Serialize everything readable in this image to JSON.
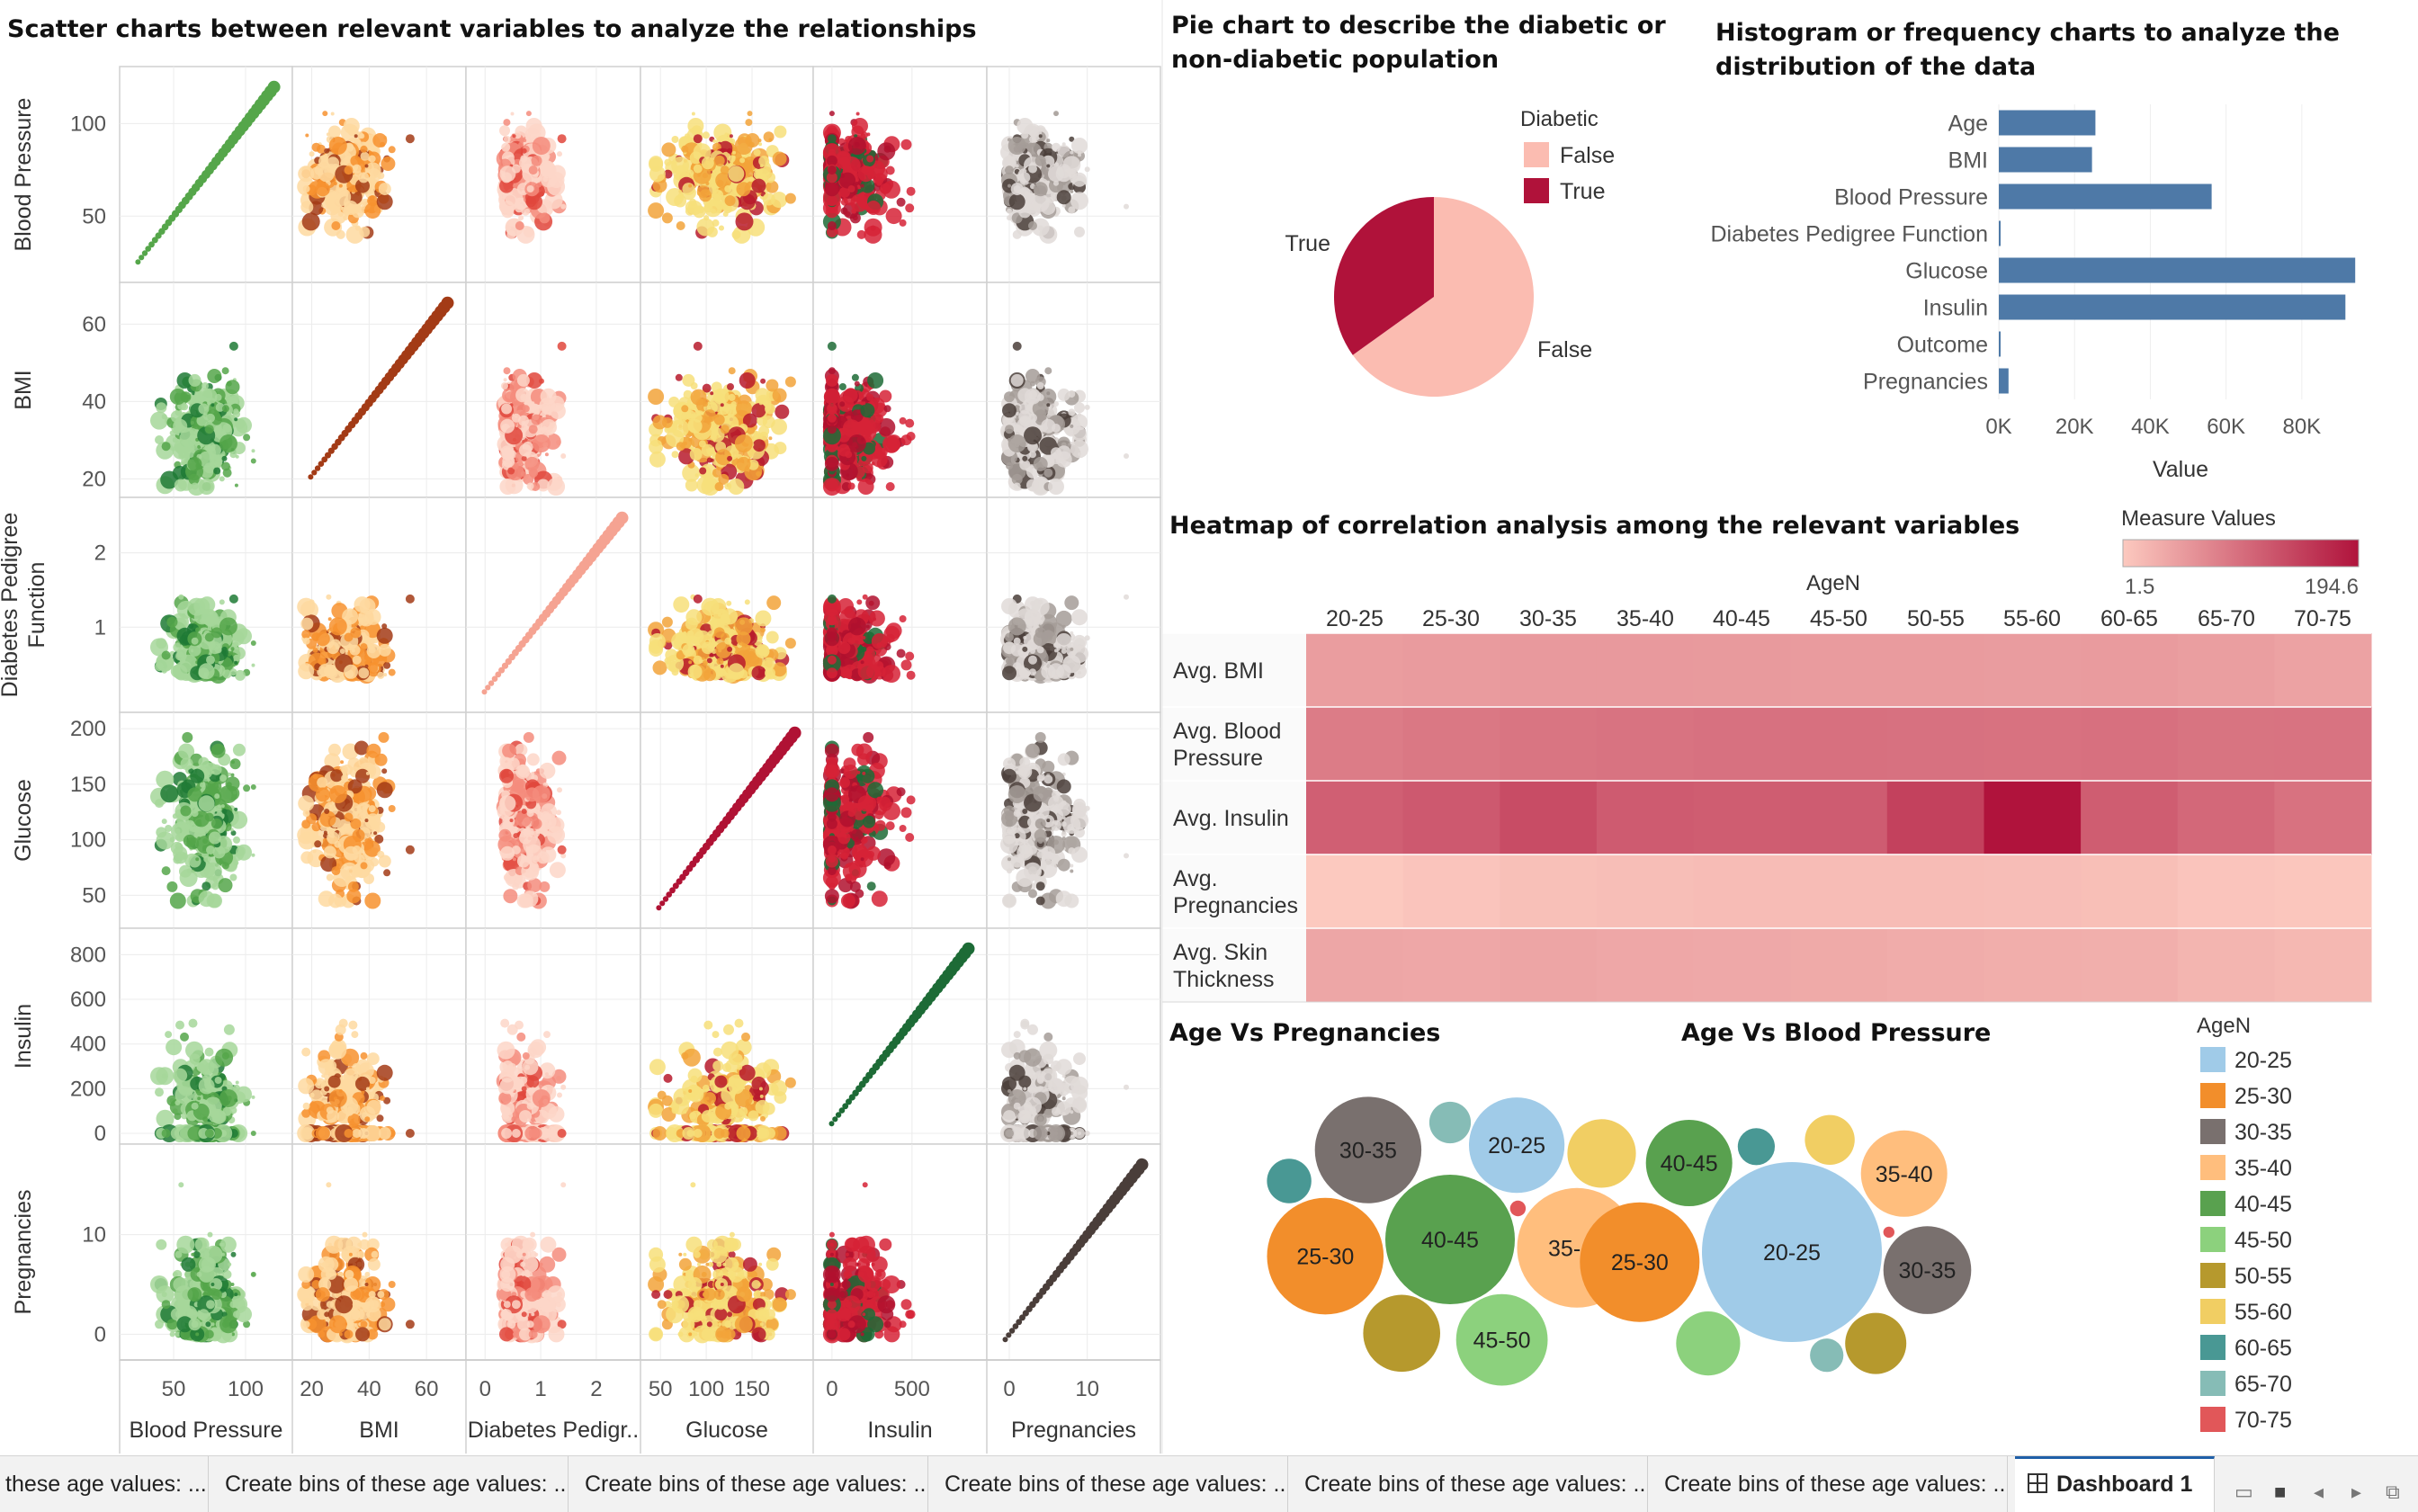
{
  "titles": {
    "scatter": "Scatter charts between relevant variables to analyze the relationships",
    "pie_line1": "Pie chart to describe the diabetic or",
    "pie_line2": "non-diabetic population",
    "hist_line1": "Histogram or frequency charts to analyze the",
    "hist_line2": "distribution of the data",
    "heatmap": "Heatmap of correlation analysis among the relevant variables",
    "age_preg": "Age Vs Pregnancies",
    "age_bp": "Age Vs Blood Pressure"
  },
  "chart_data": [
    {
      "type": "scatter",
      "title": "Scatter charts between relevant variables to analyze the relationships",
      "variables": [
        "Blood Pressure",
        "BMI",
        "Diabetes Pedigree Function",
        "Glucose",
        "Insulin",
        "Pregnancies"
      ],
      "row_labels": [
        [
          "Blood Pressure"
        ],
        [
          "BMI"
        ],
        [
          "Diabetes Pedigree",
          "Function"
        ],
        [
          "Glucose"
        ],
        [
          "Insulin"
        ],
        [
          "Pregnancies"
        ]
      ],
      "column_labels": [
        "Blood Pressure",
        "BMI",
        "Diabetes Pedigr..",
        "Glucose",
        "Insulin",
        "Pregnancies"
      ],
      "row_ticks": [
        [
          50,
          100
        ],
        [
          20,
          40,
          60
        ],
        [
          1,
          2
        ],
        [
          50,
          100,
          150,
          200
        ],
        [
          0,
          200,
          400,
          600,
          800
        ],
        [
          0,
          10
        ]
      ],
      "row_ranges": [
        [
          20,
          125
        ],
        [
          18,
          68
        ],
        [
          0,
          2.6
        ],
        [
          30,
          205
        ],
        [
          0,
          870
        ],
        [
          -1.5,
          18
        ]
      ],
      "column_ticks": [
        [
          50,
          100
        ],
        [
          20,
          40,
          60
        ],
        [
          0,
          1,
          2
        ],
        [
          50,
          100,
          150
        ],
        [
          0,
          500
        ],
        [
          0,
          10
        ]
      ],
      "column_ranges": [
        [
          20,
          125
        ],
        [
          17,
          70
        ],
        [
          -0.15,
          2.6
        ],
        [
          40,
          205
        ],
        [
          -50,
          900
        ],
        [
          -1.5,
          18
        ]
      ],
      "column_palettes": [
        [
          "#a6d79a",
          "#55a64a",
          "#1f7a35"
        ],
        [
          "#fed9a0",
          "#f7922f",
          "#a33b16"
        ],
        [
          "#fdd6c8",
          "#f58c7c",
          "#e0463c"
        ],
        [
          "#f7df7a",
          "#f2a33a",
          "#b71a2c"
        ],
        [
          "#d62236",
          "#b0102e",
          "#1d6b36"
        ],
        [
          "#e0dbd8",
          "#a49c98",
          "#4a3e3a"
        ]
      ],
      "diagonal_colors": [
        "#55a64a",
        "#a33b16",
        "#f5a392",
        "#b01234",
        "#1d6b36",
        "#4a3e3a"
      ]
    },
    {
      "type": "pie",
      "title": "Pie chart to describe the diabetic or non-diabetic population",
      "legend_title": "Diabetic",
      "legend_position": "top-right",
      "slices": [
        {
          "label": "False",
          "value": 65.1,
          "color": "#fbbcb1"
        },
        {
          "label": "True",
          "value": 34.9,
          "color": "#b0123a"
        }
      ]
    },
    {
      "type": "bar",
      "orientation": "horizontal",
      "title": "Histogram or frequency charts to analyze the distribution of the data",
      "categories": [
        "Age",
        "BMI",
        "Blood Pressure",
        "Diabetes Pedigree Function",
        "Glucose",
        "Insulin",
        "Outcome",
        "Pregnancies"
      ],
      "values": [
        25500,
        24600,
        56200,
        364,
        94100,
        91500,
        268,
        2570
      ],
      "xlabel": "Value",
      "xticks": [
        "0K",
        "20K",
        "40K",
        "60K",
        "80K"
      ],
      "xlim": [
        0,
        95000
      ],
      "color": "#4e79a7",
      "grid": true
    },
    {
      "type": "heatmap",
      "title": "Heatmap of correlation analysis among the relevant variables",
      "x_title": "AgeN",
      "x": [
        "20-25",
        "25-30",
        "30-35",
        "35-40",
        "40-45",
        "45-50",
        "50-55",
        "55-60",
        "60-65",
        "65-70",
        "70-75"
      ],
      "y": [
        [
          "Avg. BMI"
        ],
        [
          "Avg. Blood",
          "Pressure"
        ],
        [
          "Avg. Insulin"
        ],
        [
          "Avg.",
          "Pregnancies"
        ],
        [
          "Avg. Skin",
          "Thickness"
        ]
      ],
      "values": [
        [
          30.5,
          32.0,
          33.8,
          34.0,
          33.0,
          32.5,
          32.3,
          31.5,
          32.0,
          30.0,
          26.0
        ],
        [
          63.0,
          67.5,
          70.5,
          72.5,
          75.0,
          76.0,
          74.5,
          74.0,
          75.5,
          72.0,
          72.5
        ],
        [
          95.0,
          102.0,
          118.0,
          100.0,
          98.0,
          99.0,
          132.0,
          194.6,
          98.0,
          85.0,
          74.0
        ],
        [
          1.5,
          3.0,
          5.2,
          6.3,
          7.2,
          7.3,
          7.0,
          6.5,
          5.8,
          3.0,
          2.4
        ],
        [
          23.0,
          22.0,
          24.0,
          22.0,
          21.0,
          20.0,
          18.5,
          17.0,
          16.0,
          12.0,
          10.0
        ]
      ],
      "color_title": "Measure Values",
      "color_min_label": "1.5",
      "color_max_label": "194.6",
      "color_range": [
        1.5,
        194.6
      ],
      "color_scale": [
        "#fcc9bf",
        "#b0133c"
      ]
    },
    {
      "type": "bubble",
      "title": "Age Vs Pregnancies",
      "bubbles": [
        {
          "label": "20-25",
          "value": 37
        },
        {
          "label": "25-30",
          "value": 55
        },
        {
          "label": "30-35",
          "value": 46
        },
        {
          "label": "35-40",
          "value": 58
        },
        {
          "label": "40-45",
          "value": 68
        },
        {
          "label": "45-50",
          "value": 34
        },
        {
          "label": "50-55",
          "value": 24
        },
        {
          "label": "55-60",
          "value": 19
        },
        {
          "label": "60-65",
          "value": 8
        },
        {
          "label": "65-70",
          "value": 7
        },
        {
          "label": "70-75",
          "value": 1
        }
      ]
    },
    {
      "type": "bubble",
      "title": "Age Vs Blood Pressure",
      "bubbles": [
        {
          "label": "20-25",
          "value": 260
        },
        {
          "label": "25-30",
          "value": 115
        },
        {
          "label": "30-35",
          "value": 62
        },
        {
          "label": "35-40",
          "value": 60
        },
        {
          "label": "40-45",
          "value": 60
        },
        {
          "label": "45-50",
          "value": 33
        },
        {
          "label": "50-55",
          "value": 30
        },
        {
          "label": "55-60",
          "value": 20
        },
        {
          "label": "60-65",
          "value": 11
        },
        {
          "label": "65-70",
          "value": 9
        },
        {
          "label": "70-75",
          "value": 1
        }
      ]
    }
  ],
  "age_legend": {
    "title": "AgeN",
    "position": "right",
    "items": [
      {
        "label": "20-25",
        "color": "#a0cbe8"
      },
      {
        "label": "25-30",
        "color": "#f28e2b"
      },
      {
        "label": "30-35",
        "color": "#79706e"
      },
      {
        "label": "35-40",
        "color": "#ffbe7d"
      },
      {
        "label": "40-45",
        "color": "#59a14f"
      },
      {
        "label": "45-50",
        "color": "#8cd17d"
      },
      {
        "label": "50-55",
        "color": "#b6992d"
      },
      {
        "label": "55-60",
        "color": "#f1ce63"
      },
      {
        "label": "60-65",
        "color": "#499894"
      },
      {
        "label": "65-70",
        "color": "#86bcb6"
      },
      {
        "label": "70-75",
        "color": "#e15759"
      }
    ]
  },
  "tabs": {
    "items": [
      "these age values: ...",
      "Create bins of these age values: ...",
      "Create bins of these age values: ...",
      "Create bins of these age values: ...",
      "Create bins of these age values: ...",
      "Create bins of these age values: ..."
    ],
    "active": "Dashboard 1",
    "controls": [
      "▭",
      "■",
      "◂",
      "▸",
      "⧉"
    ]
  }
}
